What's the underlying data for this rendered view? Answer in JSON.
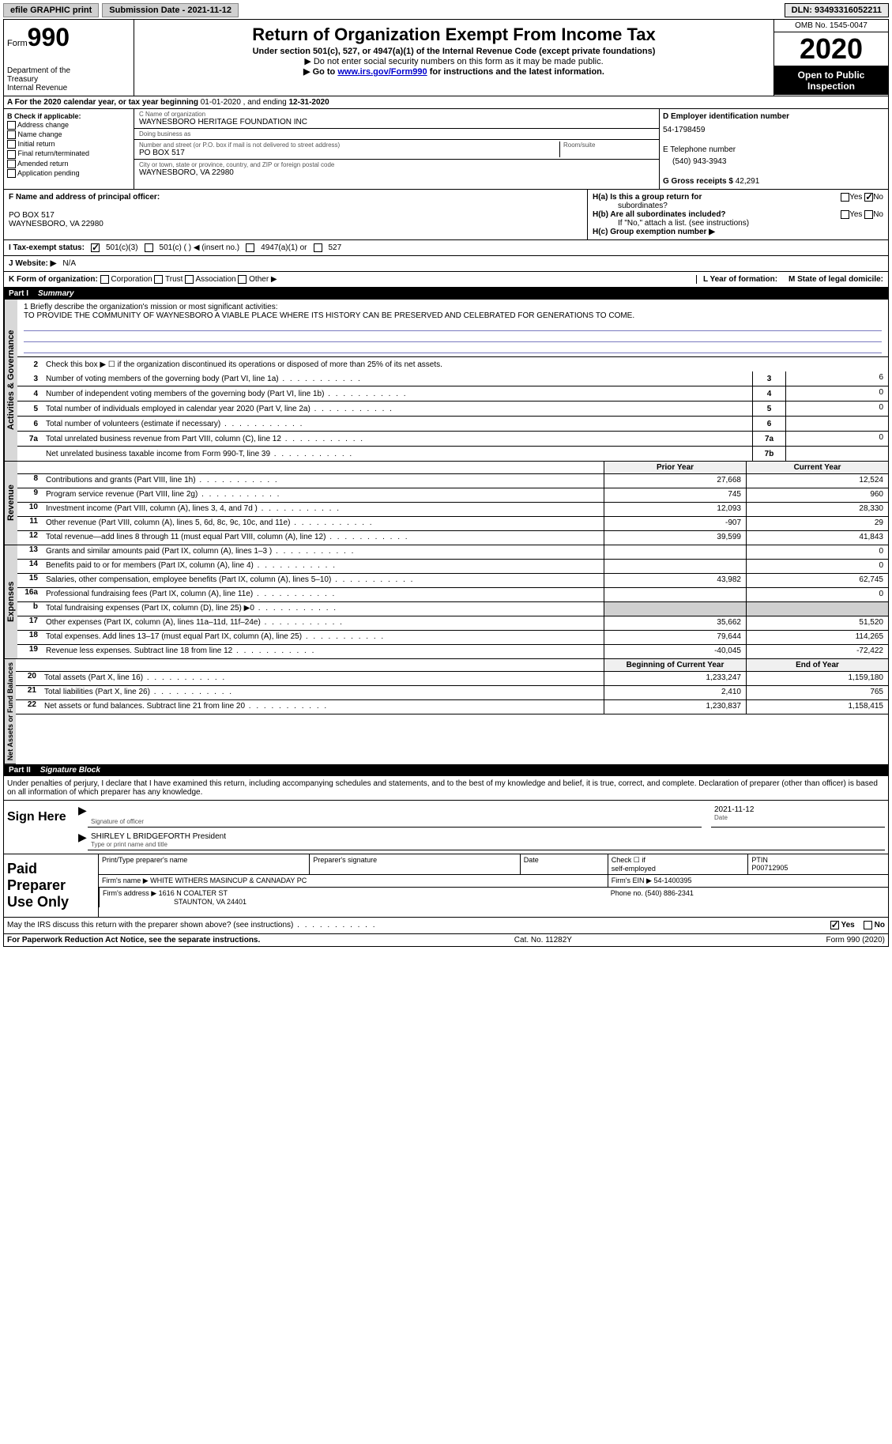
{
  "top": {
    "efile": "efile GRAPHIC print",
    "submission_label": "Submission Date - ",
    "submission_date": "2021-11-12",
    "dln_label": "DLN: ",
    "dln": "93493316052211"
  },
  "header": {
    "form_word": "Form",
    "form_num": "990",
    "dept1": "Department of the",
    "dept2": "Treasury",
    "dept3": "Internal Revenue",
    "title": "Return of Organization Exempt From Income Tax",
    "sub1": "Under section 501(c), 527, or 4947(a)(1) of the Internal Revenue Code (except private foundations)",
    "sub2": "▶ Do not enter social security numbers on this form as it may be made public.",
    "sub3_pre": "▶ Go to ",
    "sub3_link": "www.irs.gov/Form990",
    "sub3_post": " for instructions and the latest information.",
    "omb": "OMB No. 1545-0047",
    "year": "2020",
    "open1": "Open to Public",
    "open2": "Inspection"
  },
  "period": {
    "text_a": "A For the 2020 calendar year, or tax year beginning ",
    "begin": "01-01-2020",
    "mid": " , and ending ",
    "end": "12-31-2020"
  },
  "b": {
    "header": "B Check if applicable:",
    "opts": [
      "Address change",
      "Name change",
      "Initial return",
      "Final return/terminated",
      "Amended return",
      "Application pending"
    ]
  },
  "c": {
    "name_label": "C Name of organization",
    "name": "WAYNESBORO HERITAGE FOUNDATION INC",
    "dba_label": "Doing business as",
    "dba": "",
    "street_label": "Number and street (or P.O. box if mail is not delivered to street address)",
    "room_label": "Room/suite",
    "street": "PO BOX 517",
    "city_label": "City or town, state or province, country, and ZIP or foreign postal code",
    "city": "WAYNESBORO, VA  22980"
  },
  "d": {
    "ein_label": "D Employer identification number",
    "ein": "54-1798459",
    "phone_label": "E Telephone number",
    "phone": "(540) 943-3943",
    "gross_label": "G Gross receipts $ ",
    "gross": "42,291"
  },
  "f": {
    "label": "F  Name and address of principal officer:",
    "line1": "PO BOX 517",
    "line2": "WAYNESBORO, VA  22980"
  },
  "h": {
    "a_label": "H(a)  Is this a group return for",
    "a_label2": "subordinates?",
    "b_label": "H(b)  Are all subordinates included?",
    "b_note": "If \"No,\" attach a list. (see instructions)",
    "c_label": "H(c)  Group exemption number ▶",
    "yes": "Yes",
    "no": "No"
  },
  "i": {
    "label": "I   Tax-exempt status:",
    "o1": "501(c)(3)",
    "o2": "501(c) (  ) ◀ (insert no.)",
    "o3": "4947(a)(1) or",
    "o4": "527"
  },
  "j": {
    "label": "J   Website: ▶",
    "val": "N/A"
  },
  "k": {
    "label": "K Form of organization:",
    "opts": [
      "Corporation",
      "Trust",
      "Association",
      "Other ▶"
    ],
    "l_label": "L Year of formation:",
    "l_val": "",
    "m_label": "M State of legal domicile:",
    "m_val": ""
  },
  "parts": {
    "p1_label": "Part I",
    "p1_title": "Summary",
    "p2_label": "Part II",
    "p2_title": "Signature Block"
  },
  "vlabels": {
    "gov": "Activities & Governance",
    "rev": "Revenue",
    "exp": "Expenses",
    "net": "Net Assets or Fund Balances"
  },
  "mission": {
    "q": "1  Briefly describe the organization's mission or most significant activities:",
    "text": "TO PROVIDE THE COMMUNITY OF WAYNESBORO A VIABLE PLACE WHERE ITS HISTORY CAN BE PRESERVED AND CELEBRATED FOR GENERATIONS TO COME."
  },
  "gov": {
    "l2": "Check this box ▶ ☐  if the organization discontinued its operations or disposed of more than 25% of its net assets.",
    "rows": [
      {
        "n": "3",
        "desc": "Number of voting members of the governing body (Part VI, line 1a)",
        "box": "3",
        "val": "6"
      },
      {
        "n": "4",
        "desc": "Number of independent voting members of the governing body (Part VI, line 1b)",
        "box": "4",
        "val": "0"
      },
      {
        "n": "5",
        "desc": "Total number of individuals employed in calendar year 2020 (Part V, line 2a)",
        "box": "5",
        "val": "0"
      },
      {
        "n": "6",
        "desc": "Total number of volunteers (estimate if necessary)",
        "box": "6",
        "val": ""
      },
      {
        "n": "7a",
        "desc": "Total unrelated business revenue from Part VIII, column (C), line 12",
        "box": "7a",
        "val": "0"
      },
      {
        "n": "",
        "desc": "Net unrelated business taxable income from Form 990-T, line 39",
        "box": "7b",
        "val": ""
      }
    ]
  },
  "twocol": {
    "prior": "Prior Year",
    "current": "Current Year",
    "begin": "Beginning of Current Year",
    "end": "End of Year"
  },
  "rev": [
    {
      "n": "8",
      "desc": "Contributions and grants (Part VIII, line 1h)",
      "c1": "27,668",
      "c2": "12,524"
    },
    {
      "n": "9",
      "desc": "Program service revenue (Part VIII, line 2g)",
      "c1": "745",
      "c2": "960"
    },
    {
      "n": "10",
      "desc": "Investment income (Part VIII, column (A), lines 3, 4, and 7d )",
      "c1": "12,093",
      "c2": "28,330"
    },
    {
      "n": "11",
      "desc": "Other revenue (Part VIII, column (A), lines 5, 6d, 8c, 9c, 10c, and 11e)",
      "c1": "-907",
      "c2": "29"
    },
    {
      "n": "12",
      "desc": "Total revenue—add lines 8 through 11 (must equal Part VIII, column (A), line 12)",
      "c1": "39,599",
      "c2": "41,843"
    }
  ],
  "exp": [
    {
      "n": "13",
      "desc": "Grants and similar amounts paid (Part IX, column (A), lines 1–3 )",
      "c1": "",
      "c2": "0"
    },
    {
      "n": "14",
      "desc": "Benefits paid to or for members (Part IX, column (A), line 4)",
      "c1": "",
      "c2": "0"
    },
    {
      "n": "15",
      "desc": "Salaries, other compensation, employee benefits (Part IX, column (A), lines 5–10)",
      "c1": "43,982",
      "c2": "62,745"
    },
    {
      "n": "16a",
      "desc": "Professional fundraising fees (Part IX, column (A), line 11e)",
      "c1": "",
      "c2": "0"
    },
    {
      "n": "b",
      "desc": "Total fundraising expenses (Part IX, column (D), line 25) ▶0",
      "c1": "shade",
      "c2": "shade"
    },
    {
      "n": "17",
      "desc": "Other expenses (Part IX, column (A), lines 11a–11d, 11f–24e)",
      "c1": "35,662",
      "c2": "51,520"
    },
    {
      "n": "18",
      "desc": "Total expenses. Add lines 13–17 (must equal Part IX, column (A), line 25)",
      "c1": "79,644",
      "c2": "114,265"
    },
    {
      "n": "19",
      "desc": "Revenue less expenses. Subtract line 18 from line 12",
      "c1": "-40,045",
      "c2": "-72,422"
    }
  ],
  "net": [
    {
      "n": "20",
      "desc": "Total assets (Part X, line 16)",
      "c1": "1,233,247",
      "c2": "1,159,180"
    },
    {
      "n": "21",
      "desc": "Total liabilities (Part X, line 26)",
      "c1": "2,410",
      "c2": "765"
    },
    {
      "n": "22",
      "desc": "Net assets or fund balances. Subtract line 21 from line 20",
      "c1": "1,230,837",
      "c2": "1,158,415"
    }
  ],
  "sig": {
    "penalty": "Under penalties of perjury, I declare that I have examined this return, including accompanying schedules and statements, and to the best of my knowledge and belief, it is true, correct, and complete. Declaration of preparer (other than officer) is based on all information of which preparer has any knowledge.",
    "sign_here": "Sign Here",
    "sig_officer": "Signature of officer",
    "date_label": "Date",
    "date": "2021-11-12",
    "name": "SHIRLEY L BRIDGEFORTH  President",
    "name_label": "Type or print name and title"
  },
  "preparer": {
    "label": "Paid Preparer Use Only",
    "h1": "Print/Type preparer's name",
    "h2": "Preparer's signature",
    "h3": "Date",
    "h4_a": "Check ☐ if",
    "h4_b": "self-employed",
    "h5": "PTIN",
    "ptin": "P00712905",
    "firm_name_label": "Firm's name    ▶",
    "firm_name": "WHITE WITHERS MASINCUP & CANNADAY PC",
    "firm_ein_label": "Firm's EIN ▶",
    "firm_ein": "54-1400395",
    "firm_addr_label": "Firm's address ▶",
    "firm_addr1": "1616 N COALTER ST",
    "firm_addr2": "STAUNTON, VA  24401",
    "phone_label": "Phone no.",
    "phone": "(540) 886-2341"
  },
  "discuss": {
    "q": "May the IRS discuss this return with the preparer shown above? (see instructions)",
    "yes": "Yes",
    "no": "No"
  },
  "footer": {
    "left": "For Paperwork Reduction Act Notice, see the separate instructions.",
    "mid": "Cat. No. 11282Y",
    "right": "Form 990 (2020)"
  }
}
